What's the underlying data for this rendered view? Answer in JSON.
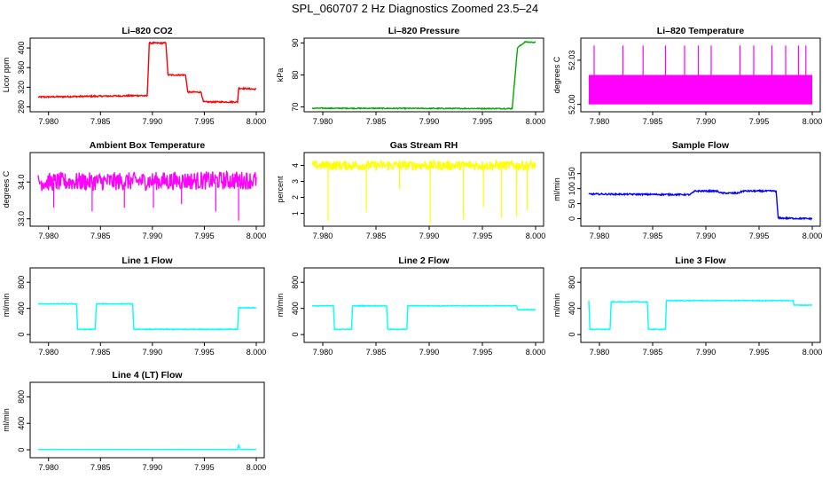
{
  "page_title": "SPL_060707  2 Hz Diagnostics Zoomed 23.5–24",
  "chart_data": [
    {
      "type": "line",
      "title": "Li–820 CO2",
      "ylabel": "Licor ppm",
      "color": "#ff0000",
      "x_range": [
        7.979,
        8.0
      ],
      "xticks": [
        "7.980",
        "7.985",
        "7.990",
        "7.995",
        "8.000"
      ],
      "ylim": [
        270,
        420
      ],
      "yticks": [
        "280",
        "320",
        "360",
        "400"
      ],
      "series_x": [
        7.979,
        7.989,
        7.9895,
        7.9897,
        7.9913,
        7.9915,
        7.9932,
        7.9934,
        7.9947,
        7.9949,
        7.9982,
        7.9983,
        8.0
      ],
      "series_y": [
        300,
        303,
        302,
        410,
        410,
        345,
        345,
        310,
        310,
        290,
        290,
        318,
        316
      ],
      "noise": 1.5,
      "spikes": []
    },
    {
      "type": "line",
      "title": "Li–820 Pressure",
      "ylabel": "kPa",
      "color": "#00aa00",
      "x_range": [
        7.979,
        8.0
      ],
      "xticks": [
        "7.980",
        "7.985",
        "7.990",
        "7.995",
        "8.000"
      ],
      "ylim": [
        68.5,
        91.5
      ],
      "yticks": [
        "70",
        "80",
        "90"
      ],
      "series_x": [
        7.979,
        7.9978,
        7.9983,
        7.999,
        8.0
      ],
      "series_y": [
        69.6,
        69.5,
        88.5,
        90.3,
        90.2
      ],
      "noise": 0.15,
      "spikes": []
    },
    {
      "type": "line",
      "title": "Li–820 Temperature",
      "ylabel": "degrees C",
      "color": "#ff00ff",
      "x_range": [
        7.979,
        8.0
      ],
      "xticks": [
        "7.980",
        "7.985",
        "7.990",
        "7.995",
        "8.000"
      ],
      "ylim": [
        51.995,
        52.045
      ],
      "yticks": [
        "52.00",
        "52.03"
      ],
      "series_x": [
        7.979,
        8.0
      ],
      "series_y": [
        52.0,
        52.0
      ],
      "band": [
        52.0,
        52.02
      ],
      "noise": 0,
      "spikes": [
        [
          7.9795,
          52.04
        ],
        [
          7.9822,
          52.04
        ],
        [
          7.9841,
          52.04
        ],
        [
          7.9862,
          52.04
        ],
        [
          7.988,
          52.04
        ],
        [
          7.9893,
          52.04
        ],
        [
          7.9905,
          52.04
        ],
        [
          7.9932,
          52.04
        ],
        [
          7.9945,
          52.04
        ],
        [
          7.9962,
          52.04
        ],
        [
          7.9975,
          52.04
        ],
        [
          7.9987,
          52.04
        ],
        [
          7.9994,
          52.04
        ]
      ]
    },
    {
      "type": "line",
      "title": "Ambient Box Temperature",
      "ylabel": "degrees C",
      "color": "#ff00ff",
      "x_range": [
        7.979,
        8.0
      ],
      "xticks": [
        "7.980",
        "7.985",
        "7.990",
        "7.995",
        "8.000"
      ],
      "ylim": [
        32.8,
        34.8
      ],
      "yticks": [
        "33.0",
        "34.0"
      ],
      "series_x": [
        7.979,
        8.0
      ],
      "series_y": [
        34.0,
        34.05
      ],
      "noise": 0.25,
      "spikes": [
        [
          7.9805,
          33.3
        ],
        [
          7.9842,
          33.2
        ],
        [
          7.9873,
          33.3
        ],
        [
          7.9901,
          33.3
        ],
        [
          7.9928,
          33.4
        ],
        [
          7.9961,
          33.2
        ],
        [
          7.9983,
          32.95
        ]
      ]
    },
    {
      "type": "line",
      "title": "Gas Stream RH",
      "ylabel": "percent",
      "color": "#ffff00",
      "x_range": [
        7.979,
        8.0
      ],
      "xticks": [
        "7.980",
        "7.985",
        "7.990",
        "7.995",
        "8.000"
      ],
      "ylim": [
        0.2,
        4.8
      ],
      "yticks": [
        "1",
        "2",
        "3",
        "4"
      ],
      "series_x": [
        7.979,
        8.0
      ],
      "series_y": [
        4.0,
        4.0
      ],
      "noise": 0.3,
      "spikes": [
        [
          7.9805,
          0.5
        ],
        [
          7.9841,
          1.1
        ],
        [
          7.9872,
          2.5
        ],
        [
          7.9901,
          0.3
        ],
        [
          7.9932,
          0.6
        ],
        [
          7.9951,
          1.4
        ],
        [
          7.9968,
          0.7
        ],
        [
          7.9982,
          0.8
        ],
        [
          7.9992,
          1.2
        ]
      ]
    },
    {
      "type": "line",
      "title": "Sample Flow",
      "ylabel": "ml/min",
      "color": "#0000ff",
      "x_range": [
        7.979,
        8.0
      ],
      "xticks": [
        "7.980",
        "7.985",
        "7.990",
        "7.995",
        "8.000"
      ],
      "ylim": [
        -25,
        220
      ],
      "yticks": [
        "0",
        "50",
        "100",
        "150"
      ],
      "series_x": [
        7.979,
        7.9885,
        7.989,
        7.991,
        7.9915,
        7.993,
        7.9935,
        7.9966,
        7.9968,
        8.0
      ],
      "series_y": [
        82,
        80,
        92,
        92,
        85,
        85,
        92,
        92,
        2,
        0
      ],
      "noise": 2.5,
      "spikes": []
    },
    {
      "type": "line",
      "title": "Line 1 Flow",
      "ylabel": "ml/min",
      "color": "#00ffff",
      "x_range": [
        7.979,
        8.0
      ],
      "xticks": [
        "7.980",
        "7.985",
        "7.990",
        "7.995",
        "8.000"
      ],
      "ylim": [
        -120,
        1020
      ],
      "yticks": [
        "0",
        "400",
        "800"
      ],
      "series_x": [
        7.979,
        7.9827,
        7.9828,
        7.9845,
        7.9846,
        7.9881,
        7.9882,
        7.9982,
        7.9983,
        8.0
      ],
      "series_y": [
        470,
        470,
        80,
        80,
        470,
        470,
        80,
        80,
        410,
        410
      ],
      "noise": 6,
      "spikes": []
    },
    {
      "type": "line",
      "title": "Line 2 Flow",
      "ylabel": "ml/min",
      "color": "#00ffff",
      "x_range": [
        7.979,
        8.0
      ],
      "xticks": [
        "7.980",
        "7.985",
        "7.990",
        "7.995",
        "8.000"
      ],
      "ylim": [
        -120,
        1020
      ],
      "yticks": [
        "0",
        "400",
        "800"
      ],
      "series_x": [
        7.979,
        7.981,
        7.9811,
        7.9827,
        7.9828,
        7.986,
        7.9861,
        7.9879,
        7.988,
        7.9982,
        7.9983,
        8.0
      ],
      "series_y": [
        440,
        440,
        80,
        80,
        440,
        440,
        80,
        80,
        440,
        440,
        380,
        380
      ],
      "noise": 6,
      "spikes": []
    },
    {
      "type": "line",
      "title": "Line 3 Flow",
      "ylabel": "ml/min",
      "color": "#00ffff",
      "x_range": [
        7.979,
        8.0
      ],
      "xticks": [
        "7.980",
        "7.985",
        "7.990",
        "7.995",
        "8.000"
      ],
      "ylim": [
        -120,
        1020
      ],
      "yticks": [
        "0",
        "400",
        "800"
      ],
      "series_x": [
        7.979,
        7.9791,
        7.9793,
        7.981,
        7.9811,
        7.9845,
        7.9846,
        7.9862,
        7.9863,
        7.9982,
        7.9983,
        8.0
      ],
      "series_y": [
        520,
        80,
        80,
        80,
        500,
        500,
        80,
        80,
        520,
        520,
        450,
        450
      ],
      "noise": 6,
      "spikes": []
    },
    {
      "type": "line",
      "title": "Line 4 (LT) Flow",
      "ylabel": "ml/min",
      "color": "#00ffff",
      "x_range": [
        7.979,
        8.0
      ],
      "xticks": [
        "7.980",
        "7.985",
        "7.990",
        "7.995",
        "8.000"
      ],
      "ylim": [
        -120,
        1020
      ],
      "yticks": [
        "0",
        "400",
        "800"
      ],
      "series_x": [
        7.979,
        7.9982,
        7.9983,
        7.9984,
        8.0
      ],
      "series_y": [
        5,
        5,
        80,
        10,
        5
      ],
      "noise": 1,
      "spikes": []
    }
  ]
}
